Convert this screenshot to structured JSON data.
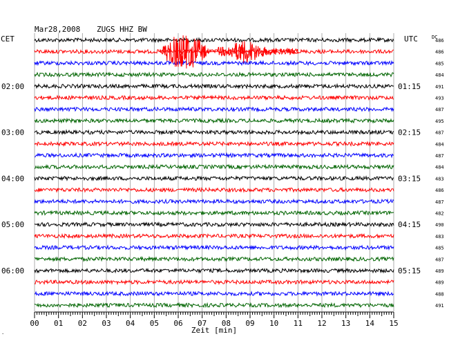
{
  "header": {
    "date": "Mar28,2008",
    "station": "ZUGS HHZ BW",
    "left_zone": "CET",
    "right_zone": "UTC",
    "dc_label": "DC"
  },
  "footer": {
    "xlabel": "Zeit [min]",
    "corner_mark": "·"
  },
  "trace_colors": [
    "#000000",
    "#ff0000",
    "#0000ff",
    "#006400"
  ],
  "chart_data": {
    "type": "line",
    "xlim": [
      0,
      15
    ],
    "x_ticks": [
      "00",
      "01",
      "02",
      "03",
      "04",
      "05",
      "06",
      "07",
      "08",
      "09",
      "10",
      "11",
      "12",
      "13",
      "14",
      "15"
    ],
    "grid": true,
    "rows": 24,
    "left_time_labels": [
      {
        "row": 4,
        "label": "02:00"
      },
      {
        "row": 8,
        "label": "03:00"
      },
      {
        "row": 12,
        "label": "04:00"
      },
      {
        "row": 16,
        "label": "05:00"
      },
      {
        "row": 20,
        "label": "06:00"
      }
    ],
    "right_time_labels": [
      {
        "row": 4,
        "label": "01:15"
      },
      {
        "row": 8,
        "label": "02:15"
      },
      {
        "row": 12,
        "label": "03:15"
      },
      {
        "row": 16,
        "label": "04:15"
      },
      {
        "row": 20,
        "label": "05:15"
      }
    ],
    "dc_values": [
      "486",
      "486",
      "485",
      "484",
      "491",
      "493",
      "487",
      "495",
      "487",
      "484",
      "487",
      "484",
      "483",
      "486",
      "487",
      "482",
      "490",
      "483",
      "485",
      "487",
      "489",
      "489",
      "488",
      "491"
    ],
    "event": {
      "row": 1,
      "start_min": 5.2,
      "end_min": 11.0
    }
  }
}
